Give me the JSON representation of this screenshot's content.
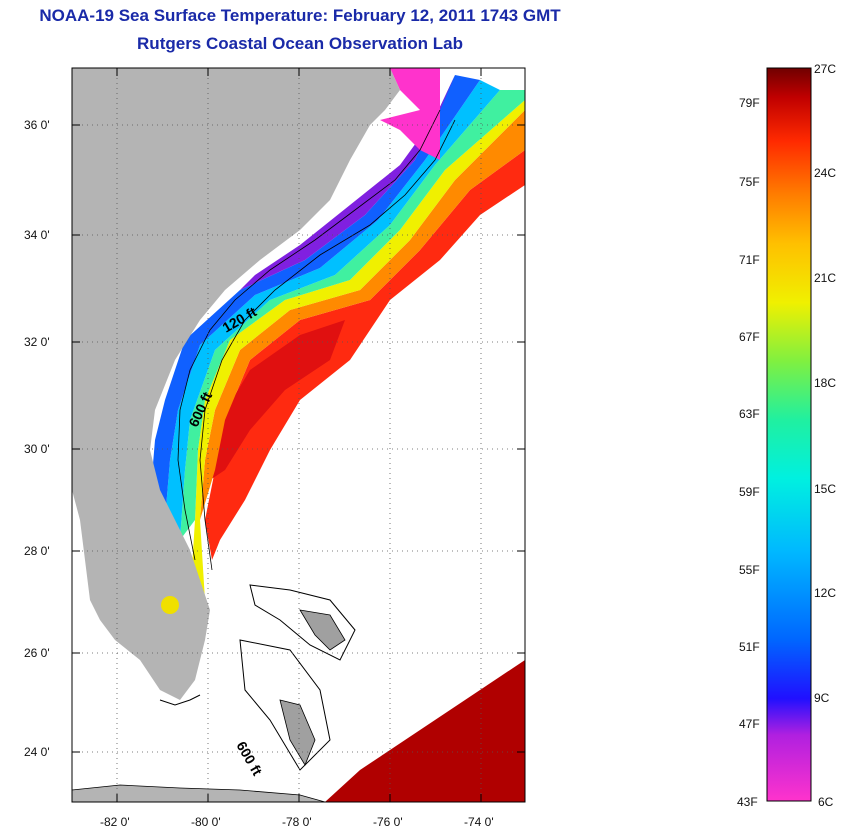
{
  "title": "NOAA-19 Sea Surface Temperature:  February 12, 2011 1743 GMT",
  "subtitle": "Rutgers Coastal Ocean Observation Lab",
  "lat_labels": [
    "36 0'",
    "34 0'",
    "32 0'",
    "30 0'",
    "28 0'",
    "26 0'",
    "24 0'"
  ],
  "lon_labels": [
    "-82 0'",
    "-80 0'",
    "-78 0'",
    "-76 0'",
    "-74 0'"
  ],
  "contours": {
    "c120": "120 ft",
    "c600a": "600 ft",
    "c600b": "600 ft"
  },
  "colorbar": {
    "f_labels": [
      "79F",
      "75F",
      "71F",
      "67F",
      "63F",
      "59F",
      "55F",
      "51F",
      "47F",
      "43F"
    ],
    "c_labels": [
      "27C",
      "24C",
      "21C",
      "18C",
      "15C",
      "12C",
      "9C",
      "6C"
    ]
  },
  "colors": {
    "title": "#1a2aa8",
    "land": "#b4b4b4",
    "frame": "#000000"
  }
}
